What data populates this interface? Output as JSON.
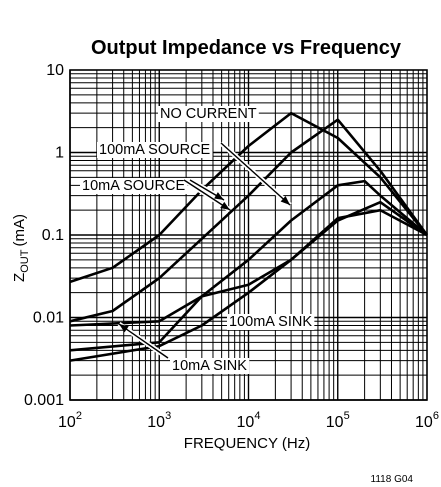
{
  "chart_data": {
    "type": "line",
    "title": "Output Impedance vs Frequency",
    "xlabel": "FREQUENCY (Hz)",
    "ylabel": {
      "main": "Z",
      "sub": "OUT",
      "unit": "(mA)"
    },
    "x_scale": "log",
    "y_scale": "log",
    "xlim": [
      100,
      1000000
    ],
    "ylim": [
      0.001,
      10
    ],
    "grid": true,
    "x_ticks": [
      {
        "value": 100,
        "base": "10",
        "exp": "2"
      },
      {
        "value": 1000,
        "base": "10",
        "exp": "3"
      },
      {
        "value": 10000,
        "base": "10",
        "exp": "4"
      },
      {
        "value": 100000,
        "base": "10",
        "exp": "5"
      },
      {
        "value": 1000000,
        "base": "10",
        "exp": "6"
      }
    ],
    "y_ticks": [
      {
        "value": 10,
        "label": "10"
      },
      {
        "value": 1,
        "label": "1"
      },
      {
        "value": 0.1,
        "label": "0.1"
      },
      {
        "value": 0.01,
        "label": "0.01"
      },
      {
        "value": 0.001,
        "label": "0.001"
      }
    ],
    "series": [
      {
        "name": "NO CURRENT",
        "points": [
          [
            100,
            0.027
          ],
          [
            300,
            0.04
          ],
          [
            1000,
            0.1
          ],
          [
            3000,
            0.35
          ],
          [
            10000,
            1.2
          ],
          [
            30000,
            3.0
          ],
          [
            100000,
            1.5
          ],
          [
            300000,
            0.5
          ],
          [
            1000000,
            0.1
          ]
        ]
      },
      {
        "name": "100mA SOURCE",
        "points": [
          [
            100,
            0.009
          ],
          [
            300,
            0.012
          ],
          [
            1000,
            0.03
          ],
          [
            3000,
            0.09
          ],
          [
            10000,
            0.3
          ],
          [
            30000,
            1.0
          ],
          [
            100000,
            2.5
          ],
          [
            300000,
            0.6
          ],
          [
            1000000,
            0.1
          ]
        ]
      },
      {
        "name": "10mA SOURCE",
        "points": [
          [
            100,
            0.008
          ],
          [
            1000,
            0.009
          ],
          [
            3000,
            0.018
          ],
          [
            10000,
            0.05
          ],
          [
            30000,
            0.15
          ],
          [
            100000,
            0.4
          ],
          [
            200000,
            0.45
          ],
          [
            300000,
            0.3
          ],
          [
            1000000,
            0.1
          ]
        ]
      },
      {
        "name": "100mA SINK",
        "points": [
          [
            100,
            0.004
          ],
          [
            1000,
            0.005
          ],
          [
            3000,
            0.018
          ],
          [
            10000,
            0.025
          ],
          [
            30000,
            0.05
          ],
          [
            100000,
            0.15
          ],
          [
            300000,
            0.25
          ],
          [
            1000000,
            0.1
          ]
        ]
      },
      {
        "name": "10mA SINK",
        "points": [
          [
            100,
            0.003
          ],
          [
            1000,
            0.0045
          ],
          [
            3000,
            0.008
          ],
          [
            10000,
            0.02
          ],
          [
            30000,
            0.05
          ],
          [
            100000,
            0.16
          ],
          [
            300000,
            0.2
          ],
          [
            1000000,
            0.1
          ]
        ]
      }
    ],
    "annotations": [
      "NO CURRENT",
      "100mA SOURCE",
      "10mA SOURCE",
      "100mA SINK",
      "10mA SINK"
    ]
  },
  "figure_code": "1118 G04"
}
